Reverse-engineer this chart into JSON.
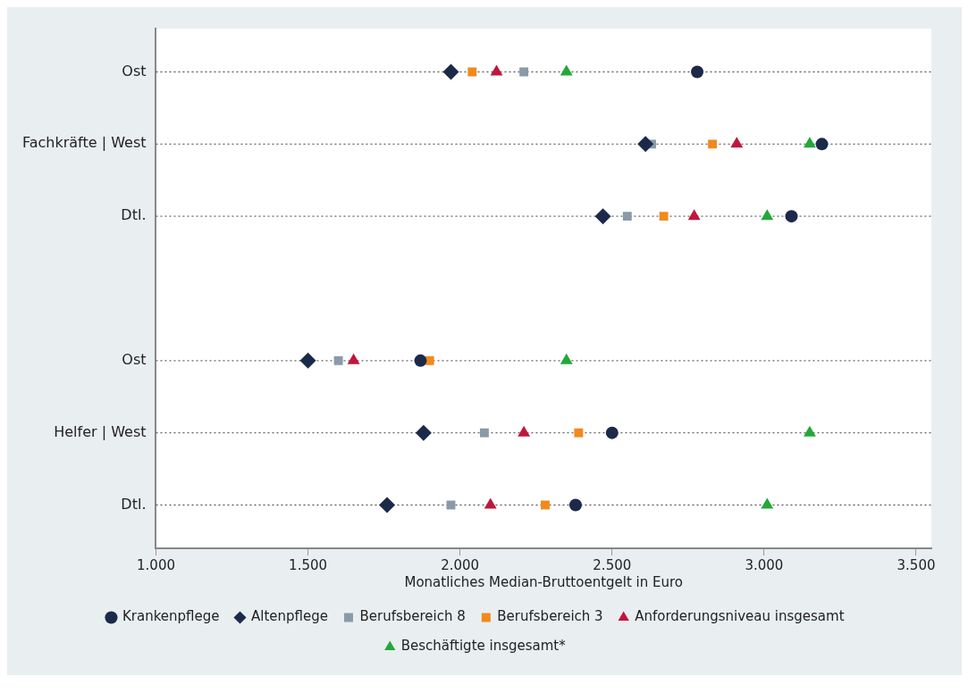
{
  "chart_data": {
    "type": "scatter",
    "orientation": "horizontal",
    "xlabel": "Monatliches Median-Bruttoentgelt in Euro",
    "categories": [
      "Ost",
      "Fachkräfte | West",
      "Dtl.",
      null,
      "Ost",
      "Helfer | West",
      "Dtl."
    ],
    "xlim": [
      1000,
      3550
    ],
    "xticks": [
      {
        "value": 1000,
        "label": "1.000"
      },
      {
        "value": 1500,
        "label": "1.500"
      },
      {
        "value": 2000,
        "label": "2.000"
      },
      {
        "value": 2500,
        "label": "2.500"
      },
      {
        "value": 3000,
        "label": "3.000"
      },
      {
        "value": 3500,
        "label": "3.500"
      }
    ],
    "grid": "y",
    "line_style": "dotted",
    "legend": "bottom",
    "series": [
      {
        "name": "Krankenpflege",
        "color": "#1c2a4a",
        "marker": "circle",
        "values": [
          2780,
          3190,
          3090,
          null,
          1870,
          2500,
          2380
        ]
      },
      {
        "name": "Altenpflege",
        "color": "#1c2a4a",
        "marker": "diamond",
        "values": [
          1970,
          2610,
          2470,
          null,
          1500,
          1880,
          1760
        ]
      },
      {
        "name": "Berufsbereich 8",
        "color": "#8a9aa6",
        "marker": "square",
        "values": [
          2210,
          2630,
          2550,
          null,
          1600,
          2080,
          1970
        ]
      },
      {
        "name": "Berufsbereich 3",
        "color": "#f08a1c",
        "marker": "square",
        "values": [
          2040,
          2830,
          2670,
          null,
          1900,
          2390,
          2280
        ]
      },
      {
        "name": "Anforderungsniveau insgesamt",
        "color": "#c0163c",
        "marker": "triangle",
        "values": [
          2120,
          2910,
          2770,
          null,
          1650,
          2210,
          2100
        ]
      },
      {
        "name": "Beschäftigte insgesamt*",
        "color": "#22a838",
        "marker": "triangle",
        "values": [
          2350,
          3150,
          3010,
          null,
          2350,
          3150,
          3010
        ]
      }
    ]
  }
}
